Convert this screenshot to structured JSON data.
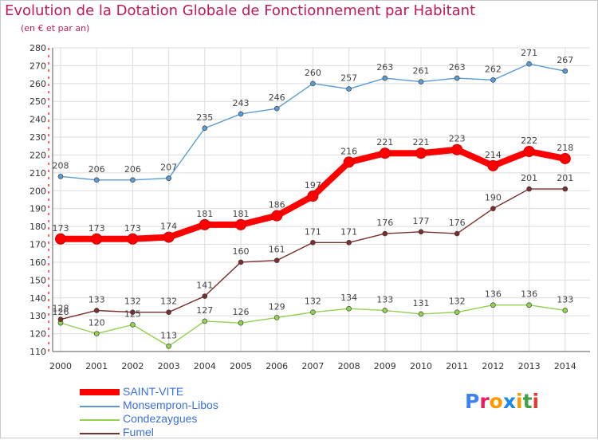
{
  "header": {
    "title": "Evolution de la Dotation Globale de Fonctionnement par Habitant",
    "subtitle": "(en € et par an)"
  },
  "brand": {
    "text": "Proxiti",
    "colors": [
      "#3b82f6",
      "#e91e63",
      "#ff9800",
      "#1e88e5",
      "#ff9800",
      "#43a047",
      "#e53935"
    ]
  },
  "chart_data": {
    "type": "line",
    "x": [
      2000,
      2001,
      2002,
      2003,
      2004,
      2005,
      2006,
      2007,
      2008,
      2009,
      2010,
      2011,
      2012,
      2013,
      2014
    ],
    "ylim": [
      110,
      280
    ],
    "yticks": [
      110,
      120,
      130,
      140,
      150,
      160,
      170,
      180,
      190,
      200,
      210,
      220,
      230,
      240,
      250,
      260,
      270,
      280
    ],
    "grid": true,
    "legend_position": "bottom-left",
    "series": [
      {
        "name": "SAINT-VITE",
        "color": "#ff0000",
        "emphasis": true,
        "values": [
          173,
          173,
          173,
          174,
          181,
          181,
          186,
          197,
          216,
          221,
          221,
          223,
          214,
          222,
          218
        ]
      },
      {
        "name": "Monsempron-Libos",
        "color": "#5b9bd5",
        "values": [
          208,
          206,
          206,
          207,
          235,
          243,
          246,
          260,
          257,
          263,
          261,
          263,
          262,
          271,
          267
        ]
      },
      {
        "name": "Condezaygues",
        "color": "#92d050",
        "values": [
          126,
          120,
          125,
          113,
          127,
          126,
          129,
          132,
          134,
          133,
          131,
          132,
          136,
          136,
          133
        ]
      },
      {
        "name": "Fumel",
        "color": "#7a2e2e",
        "values": [
          128,
          133,
          132,
          132,
          141,
          160,
          161,
          171,
          171,
          176,
          177,
          176,
          190,
          201,
          201
        ]
      }
    ]
  }
}
